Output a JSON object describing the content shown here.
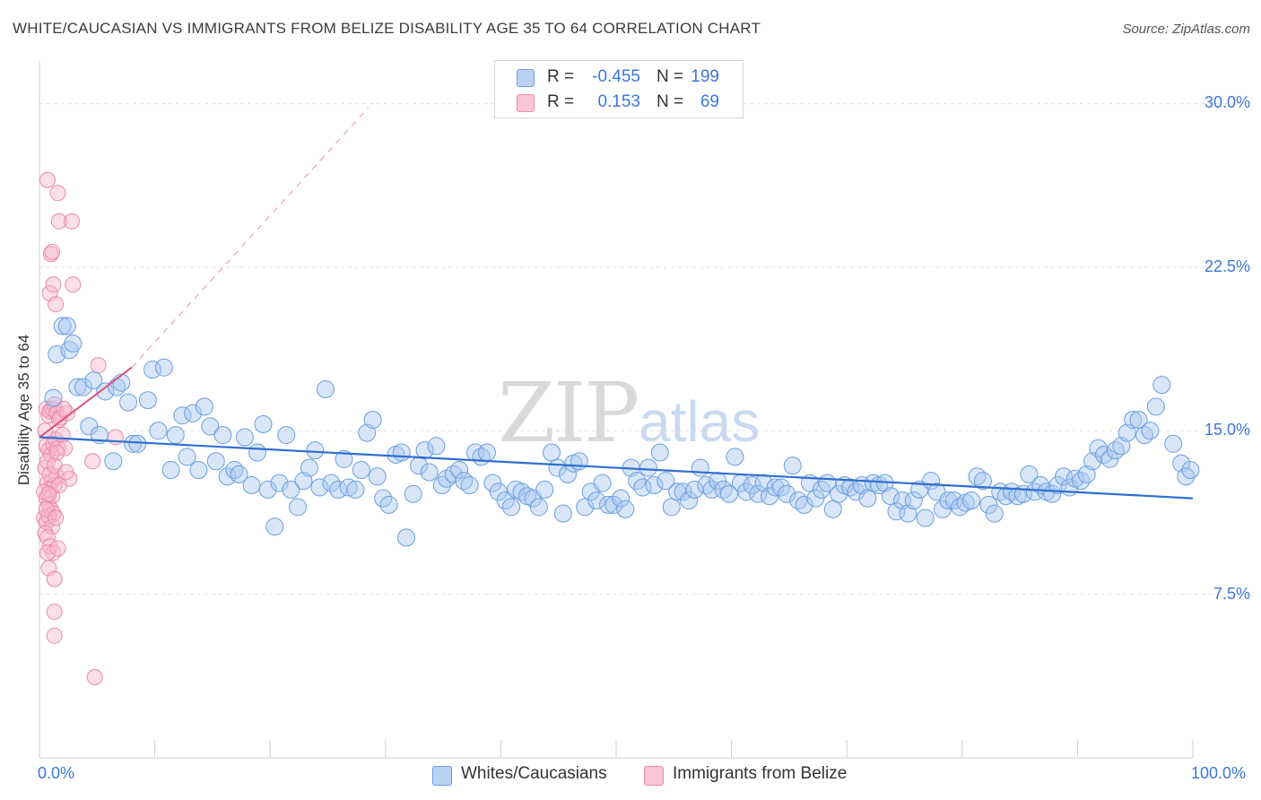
{
  "title": "WHITE/CAUCASIAN VS IMMIGRANTS FROM BELIZE DISABILITY AGE 35 TO 64 CORRELATION CHART",
  "source": "Source: ZipAtlas.com",
  "watermark": {
    "zip": "ZIP",
    "atlas": "atlas"
  },
  "legend_top": [
    {
      "r_label": "R =",
      "r_value": "-0.455",
      "n_label": "N =",
      "n_value": "199"
    },
    {
      "r_label": "R =",
      "r_value": "0.153",
      "n_label": "N =",
      "n_value": "69"
    }
  ],
  "bottom_legend": [
    "Whites/Caucasians",
    "Immigrants from Belize"
  ],
  "colors": {
    "blue_fill": "#a9c8f0",
    "blue_stroke": "#6a9ee0",
    "blue_line": "#2f6fd0",
    "pink_fill": "#f6b7cb",
    "pink_stroke": "#e98aa9",
    "pink_line": "#e0507d",
    "grid": "#e2e2e2",
    "tick_text": "#3b78d8"
  },
  "chart_data": {
    "type": "scatter",
    "title": "WHITE/CAUCASIAN VS IMMIGRANTS FROM BELIZE DISABILITY AGE 35 TO 64 CORRELATION CHART",
    "xlabel": "",
    "ylabel": "Disability Age 35 to 64",
    "xlim": [
      0,
      100
    ],
    "ylim": [
      0,
      31.5
    ],
    "x_tick_labels": [
      "0.0%",
      "100.0%"
    ],
    "y_ticks": [
      7.5,
      15.0,
      22.5,
      30.0
    ],
    "y_tick_labels": [
      "7.5%",
      "15.0%",
      "22.5%",
      "30.0%"
    ],
    "grid": true,
    "series": [
      {
        "name": "Whites/Caucasians",
        "r": -0.455,
        "n": 199,
        "trend": {
          "x": [
            0,
            100
          ],
          "y": [
            14.7,
            11.9
          ]
        },
        "points": [
          [
            1.2,
            16.5
          ],
          [
            1.5,
            18.5
          ],
          [
            2.0,
            19.8
          ],
          [
            2.4,
            19.8
          ],
          [
            2.6,
            18.7
          ],
          [
            2.9,
            19.0
          ],
          [
            3.3,
            17.0
          ],
          [
            3.8,
            17.0
          ],
          [
            4.3,
            15.2
          ],
          [
            4.7,
            17.3
          ],
          [
            5.2,
            14.8
          ],
          [
            5.7,
            16.8
          ],
          [
            6.4,
            13.6
          ],
          [
            6.7,
            17.0
          ],
          [
            7.1,
            17.2
          ],
          [
            7.7,
            16.3
          ],
          [
            8.1,
            14.4
          ],
          [
            8.5,
            14.4
          ],
          [
            9.4,
            16.4
          ],
          [
            9.8,
            17.8
          ],
          [
            10.3,
            15.0
          ],
          [
            10.8,
            17.9
          ],
          [
            11.4,
            13.2
          ],
          [
            11.8,
            14.8
          ],
          [
            12.4,
            15.7
          ],
          [
            12.8,
            13.8
          ],
          [
            13.3,
            15.8
          ],
          [
            13.8,
            13.2
          ],
          [
            14.3,
            16.1
          ],
          [
            14.8,
            15.2
          ],
          [
            15.3,
            13.6
          ],
          [
            15.9,
            14.8
          ],
          [
            16.3,
            12.9
          ],
          [
            16.9,
            13.2
          ],
          [
            17.3,
            13.0
          ],
          [
            17.8,
            14.7
          ],
          [
            18.4,
            12.5
          ],
          [
            18.9,
            14.0
          ],
          [
            19.4,
            15.3
          ],
          [
            19.8,
            12.3
          ],
          [
            20.4,
            10.6
          ],
          [
            20.8,
            12.6
          ],
          [
            21.4,
            14.8
          ],
          [
            21.8,
            12.3
          ],
          [
            22.4,
            11.5
          ],
          [
            22.9,
            12.7
          ],
          [
            23.4,
            13.3
          ],
          [
            23.9,
            14.1
          ],
          [
            24.3,
            12.4
          ],
          [
            24.8,
            16.9
          ],
          [
            25.3,
            12.6
          ],
          [
            25.9,
            12.3
          ],
          [
            26.4,
            13.7
          ],
          [
            26.8,
            12.4
          ],
          [
            27.4,
            12.3
          ],
          [
            27.9,
            13.2
          ],
          [
            28.4,
            14.9
          ],
          [
            28.9,
            15.5
          ],
          [
            29.3,
            12.9
          ],
          [
            29.8,
            11.9
          ],
          [
            30.3,
            11.6
          ],
          [
            30.9,
            13.9
          ],
          [
            31.4,
            14.0
          ],
          [
            31.8,
            10.1
          ],
          [
            32.4,
            12.1
          ],
          [
            32.9,
            13.4
          ],
          [
            33.4,
            14.1
          ],
          [
            33.8,
            13.1
          ],
          [
            34.4,
            14.3
          ],
          [
            34.9,
            12.5
          ],
          [
            35.3,
            12.8
          ],
          [
            35.9,
            13.0
          ],
          [
            36.4,
            13.2
          ],
          [
            36.8,
            12.7
          ],
          [
            37.3,
            12.5
          ],
          [
            37.8,
            14.0
          ],
          [
            38.3,
            13.8
          ],
          [
            38.8,
            14.0
          ],
          [
            39.3,
            12.6
          ],
          [
            39.8,
            12.2
          ],
          [
            40.4,
            11.8
          ],
          [
            40.9,
            11.5
          ],
          [
            41.3,
            12.3
          ],
          [
            41.8,
            12.2
          ],
          [
            42.3,
            12.0
          ],
          [
            42.8,
            11.9
          ],
          [
            43.3,
            11.5
          ],
          [
            43.8,
            12.3
          ],
          [
            44.4,
            14.0
          ],
          [
            44.9,
            13.3
          ],
          [
            45.4,
            11.2
          ],
          [
            45.8,
            13.0
          ],
          [
            46.3,
            13.5
          ],
          [
            46.8,
            13.6
          ],
          [
            47.3,
            11.5
          ],
          [
            47.8,
            12.2
          ],
          [
            48.3,
            11.8
          ],
          [
            48.8,
            12.6
          ],
          [
            49.3,
            11.6
          ],
          [
            49.8,
            11.6
          ],
          [
            50.4,
            11.9
          ],
          [
            50.8,
            11.4
          ],
          [
            51.3,
            13.3
          ],
          [
            51.8,
            12.7
          ],
          [
            52.3,
            12.4
          ],
          [
            52.8,
            13.3
          ],
          [
            53.3,
            12.5
          ],
          [
            53.8,
            14.0
          ],
          [
            54.3,
            12.7
          ],
          [
            54.8,
            11.5
          ],
          [
            55.3,
            12.2
          ],
          [
            55.8,
            12.2
          ],
          [
            56.3,
            11.8
          ],
          [
            56.8,
            12.3
          ],
          [
            57.3,
            13.3
          ],
          [
            57.8,
            12.5
          ],
          [
            58.3,
            12.3
          ],
          [
            58.8,
            12.7
          ],
          [
            59.3,
            12.3
          ],
          [
            59.8,
            12.1
          ],
          [
            60.3,
            13.8
          ],
          [
            60.8,
            12.6
          ],
          [
            61.3,
            12.2
          ],
          [
            61.8,
            12.5
          ],
          [
            62.3,
            12.1
          ],
          [
            62.8,
            12.6
          ],
          [
            63.3,
            12.0
          ],
          [
            63.8,
            12.4
          ],
          [
            64.3,
            12.4
          ],
          [
            64.8,
            12.1
          ],
          [
            65.3,
            13.4
          ],
          [
            65.8,
            11.8
          ],
          [
            66.3,
            11.6
          ],
          [
            66.8,
            12.6
          ],
          [
            67.3,
            11.9
          ],
          [
            67.8,
            12.3
          ],
          [
            68.3,
            12.6
          ],
          [
            68.8,
            11.4
          ],
          [
            69.3,
            12.1
          ],
          [
            69.8,
            12.5
          ],
          [
            70.3,
            12.4
          ],
          [
            70.8,
            12.2
          ],
          [
            71.3,
            12.5
          ],
          [
            71.8,
            11.9
          ],
          [
            72.3,
            12.6
          ],
          [
            72.8,
            12.5
          ],
          [
            73.3,
            12.6
          ],
          [
            73.8,
            12.0
          ],
          [
            74.3,
            11.3
          ],
          [
            74.8,
            11.8
          ],
          [
            75.3,
            11.2
          ],
          [
            75.8,
            11.8
          ],
          [
            76.3,
            12.3
          ],
          [
            76.8,
            11.0
          ],
          [
            77.3,
            12.7
          ],
          [
            77.8,
            12.2
          ],
          [
            78.3,
            11.4
          ],
          [
            78.8,
            11.8
          ],
          [
            79.3,
            11.8
          ],
          [
            79.8,
            11.5
          ],
          [
            80.3,
            11.7
          ],
          [
            80.8,
            11.8
          ],
          [
            81.3,
            12.9
          ],
          [
            81.8,
            12.7
          ],
          [
            82.3,
            11.6
          ],
          [
            82.8,
            11.2
          ],
          [
            83.3,
            12.2
          ],
          [
            83.8,
            12.0
          ],
          [
            84.3,
            12.2
          ],
          [
            84.8,
            12.0
          ],
          [
            85.3,
            12.1
          ],
          [
            85.8,
            13.0
          ],
          [
            86.3,
            12.2
          ],
          [
            86.8,
            12.5
          ],
          [
            87.3,
            12.2
          ],
          [
            87.8,
            12.1
          ],
          [
            88.3,
            12.5
          ],
          [
            88.8,
            12.9
          ],
          [
            89.3,
            12.4
          ],
          [
            89.8,
            12.8
          ],
          [
            90.3,
            12.7
          ],
          [
            90.8,
            13.0
          ],
          [
            91.3,
            13.6
          ],
          [
            91.8,
            14.2
          ],
          [
            92.3,
            13.9
          ],
          [
            92.8,
            13.7
          ],
          [
            93.3,
            14.1
          ],
          [
            93.8,
            14.3
          ],
          [
            94.3,
            14.9
          ],
          [
            94.8,
            15.5
          ],
          [
            95.3,
            15.5
          ],
          [
            95.8,
            14.8
          ],
          [
            96.3,
            15.0
          ],
          [
            96.8,
            16.1
          ],
          [
            97.3,
            17.1
          ],
          [
            98.3,
            14.4
          ],
          [
            99.0,
            13.5
          ],
          [
            99.4,
            12.9
          ],
          [
            99.8,
            13.2
          ]
        ]
      },
      {
        "name": "Immigrants from Belize",
        "r": 0.153,
        "n": 69,
        "trend": {
          "x": [
            0,
            8.0
          ],
          "y": [
            14.7,
            17.9
          ]
        },
        "trend_extension": {
          "x": [
            8.0,
            28.5
          ],
          "y": [
            17.9,
            29.8
          ]
        },
        "points": [
          [
            0.7,
            26.5
          ],
          [
            1.0,
            23.1
          ],
          [
            1.1,
            23.2
          ],
          [
            0.9,
            21.3
          ],
          [
            1.2,
            21.7
          ],
          [
            1.4,
            20.8
          ],
          [
            1.6,
            25.9
          ],
          [
            1.7,
            24.6
          ],
          [
            0.6,
            16.0
          ],
          [
            0.8,
            15.7
          ],
          [
            0.9,
            15.9
          ],
          [
            1.1,
            16.0
          ],
          [
            1.3,
            16.2
          ],
          [
            1.5,
            15.8
          ],
          [
            1.7,
            15.5
          ],
          [
            0.6,
            14.3
          ],
          [
            0.8,
            14.1
          ],
          [
            1.0,
            13.9
          ],
          [
            1.2,
            14.4
          ],
          [
            1.4,
            14.6
          ],
          [
            1.6,
            14.2
          ],
          [
            0.5,
            13.3
          ],
          [
            0.7,
            12.6
          ],
          [
            0.9,
            12.3
          ],
          [
            1.1,
            12.7
          ],
          [
            1.3,
            12.5
          ],
          [
            1.5,
            12.9
          ],
          [
            0.4,
            12.2
          ],
          [
            0.6,
            11.9
          ],
          [
            0.8,
            11.6
          ],
          [
            1.0,
            11.4
          ],
          [
            1.2,
            11.2
          ],
          [
            0.4,
            11.0
          ],
          [
            0.6,
            10.8
          ],
          [
            0.8,
            11.1
          ],
          [
            1.1,
            10.6
          ],
          [
            0.5,
            10.3
          ],
          [
            0.7,
            10.1
          ],
          [
            0.9,
            9.7
          ],
          [
            1.2,
            9.4
          ],
          [
            0.7,
            9.4
          ],
          [
            0.8,
            8.7
          ],
          [
            1.3,
            8.2
          ],
          [
            1.3,
            6.7
          ],
          [
            1.3,
            5.6
          ],
          [
            1.8,
            15.6
          ],
          [
            2.0,
            14.8
          ],
          [
            2.2,
            14.2
          ],
          [
            2.4,
            15.8
          ],
          [
            2.6,
            12.8
          ],
          [
            2.8,
            24.6
          ],
          [
            2.9,
            21.7
          ],
          [
            4.6,
            13.6
          ],
          [
            5.1,
            18.0
          ],
          [
            6.6,
            14.7
          ],
          [
            4.8,
            3.7
          ],
          [
            0.5,
            15.0
          ],
          [
            0.7,
            13.6
          ],
          [
            0.9,
            13.0
          ],
          [
            1.1,
            12.0
          ],
          [
            1.3,
            13.4
          ],
          [
            1.5,
            14.0
          ],
          [
            1.7,
            12.5
          ],
          [
            0.6,
            11.4
          ],
          [
            0.8,
            12.1
          ],
          [
            1.4,
            11.0
          ],
          [
            1.6,
            9.6
          ],
          [
            2.1,
            16.0
          ],
          [
            2.3,
            13.1
          ]
        ]
      }
    ]
  }
}
